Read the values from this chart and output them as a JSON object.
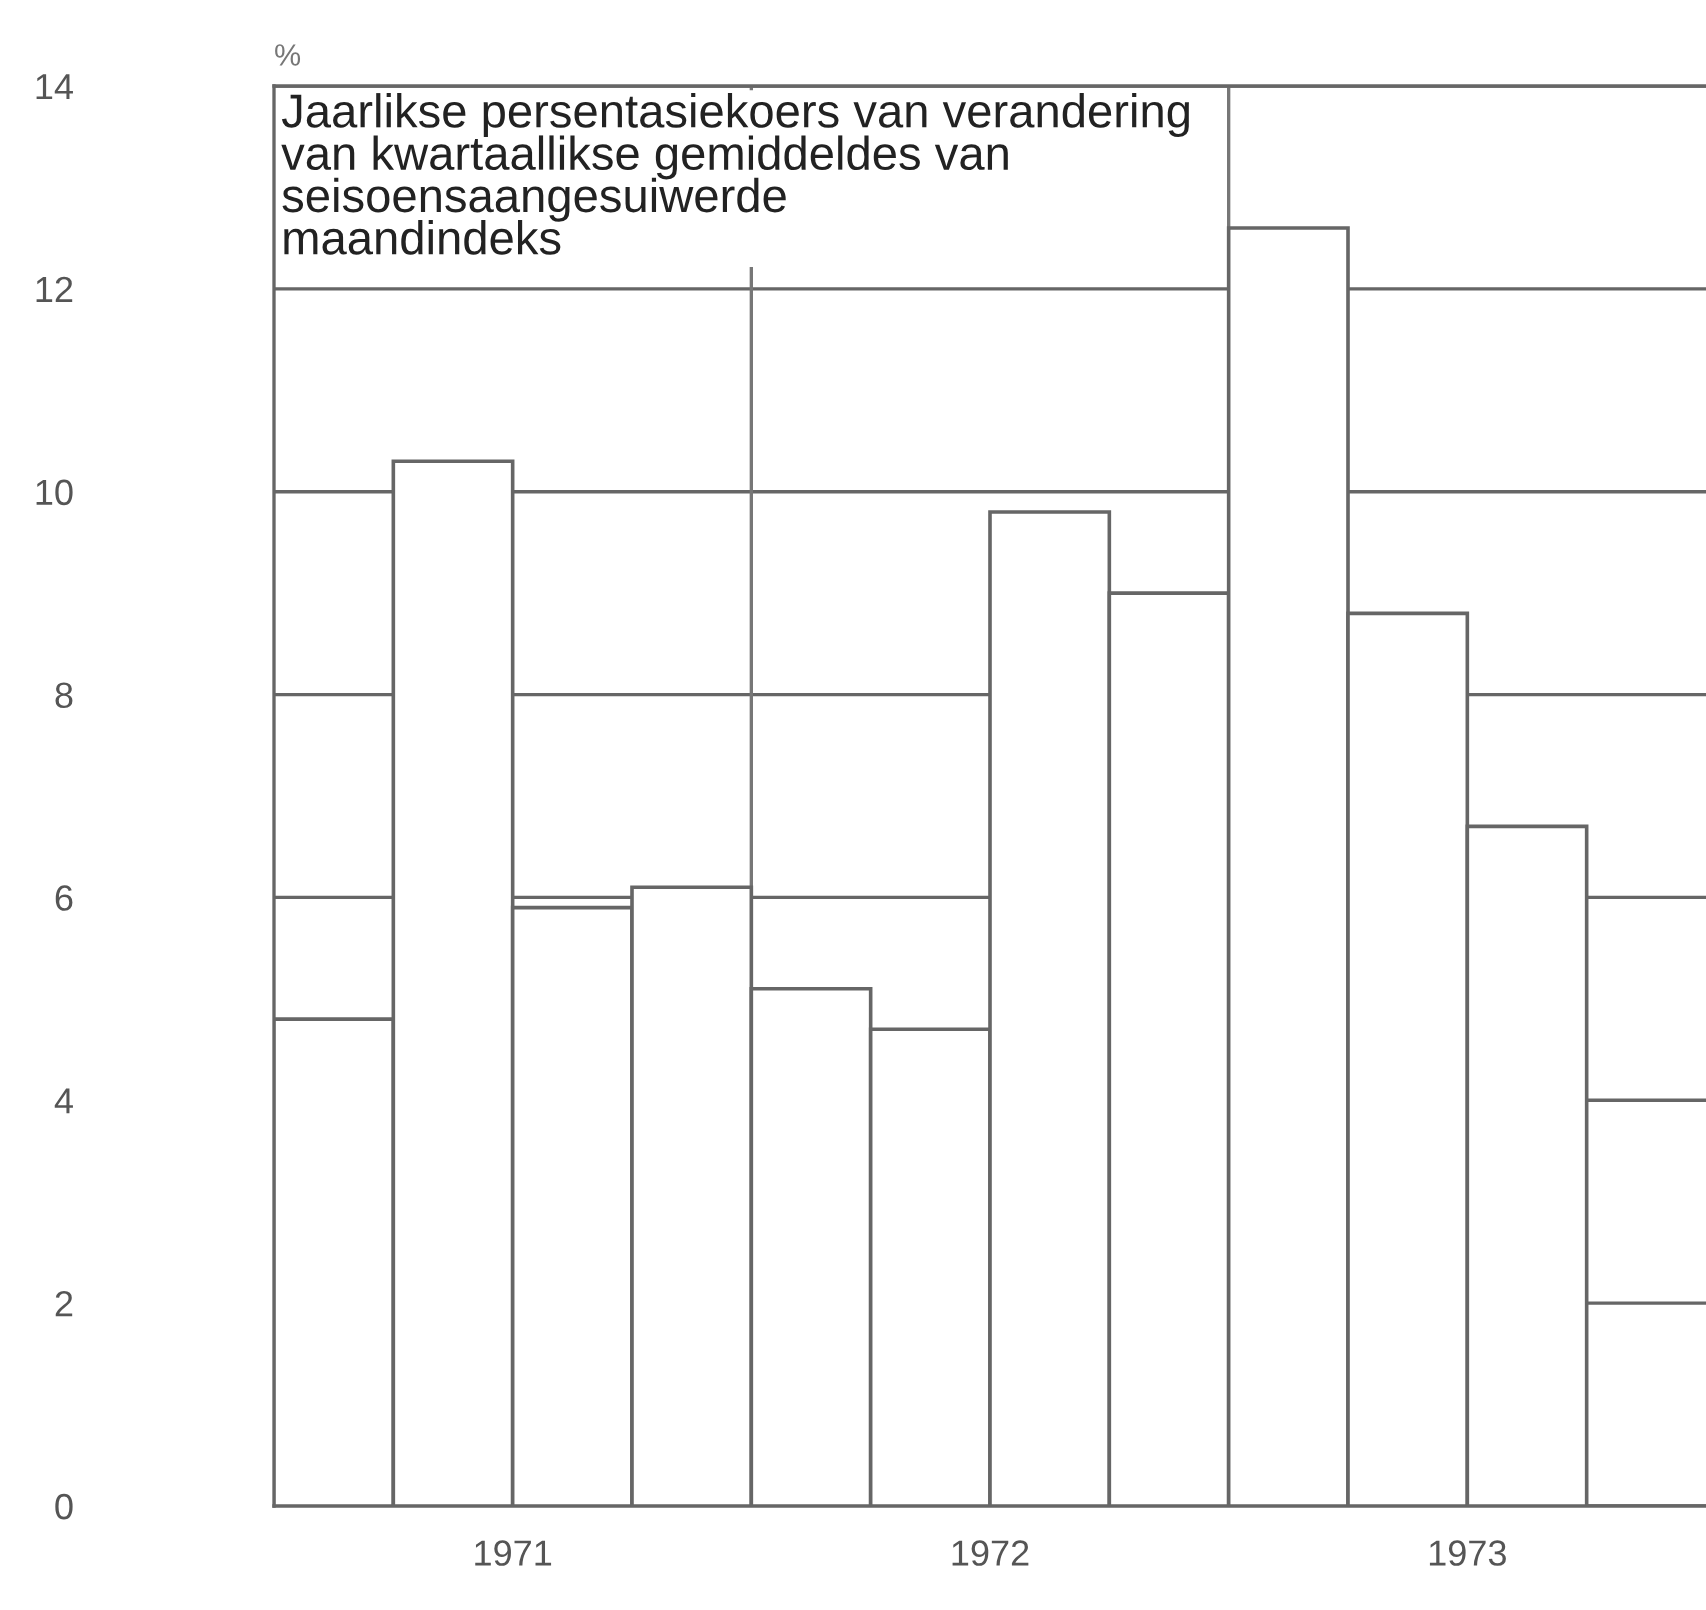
{
  "chart_data": {
    "type": "bar",
    "title": "Jaarlikse persentasiekoers van verandering\nvan kwartaallikse gemiddeldes van\nseisoensaangesuiwerde\nmaandindeks",
    "ylabel": "%",
    "x": [
      1971.125,
      1971.375,
      1971.625,
      1971.875,
      1972.125,
      1972.375,
      1972.625,
      1972.875,
      1973.125,
      1973.375,
      1973.625
    ],
    "values": [
      4.8,
      10.3,
      5.9,
      6.1,
      5.1,
      4.7,
      9.8,
      9.0,
      12.6,
      8.8,
      6.7
    ],
    "color": "#ffffff",
    "xlim": [
      1971,
      1974
    ],
    "xticks": [
      {
        "value": 1971.5,
        "label": "1971"
      },
      {
        "value": 1972.5,
        "label": "1972"
      },
      {
        "value": 1973.5,
        "label": "1973"
      }
    ],
    "ylim": [
      0,
      14
    ],
    "yticks": [
      0,
      2,
      4,
      6,
      8,
      10,
      12,
      14
    ],
    "grid": "y",
    "ref_lines": [
      {
        "axis": "x",
        "value": 1972,
        "color": "#777777"
      },
      {
        "axis": "x",
        "value": 1973,
        "color": "#777777"
      }
    ]
  }
}
